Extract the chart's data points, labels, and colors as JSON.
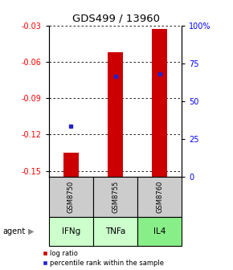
{
  "title": "GDS499 / 13960",
  "categories": [
    "IFNg",
    "TNFa",
    "IL4"
  ],
  "gsm_labels": [
    "GSM8750",
    "GSM8755",
    "GSM8760"
  ],
  "bar_bottoms": [
    -0.155,
    -0.155,
    -0.155
  ],
  "bar_tops": [
    -0.135,
    -0.052,
    -0.033
  ],
  "bar_color": "#cc0000",
  "percentile_values": [
    -0.113,
    -0.072,
    -0.07
  ],
  "percentile_color": "#2222cc",
  "ymin": -0.155,
  "ymax": -0.03,
  "yticks_left": [
    -0.15,
    -0.12,
    -0.09,
    -0.06,
    -0.03
  ],
  "yticks_right_pct": [
    0,
    25,
    50,
    75,
    100
  ],
  "yticks_right_labels": [
    "0",
    "25",
    "50",
    "75",
    "100%"
  ],
  "agent_colors": [
    "#ccffcc",
    "#ccffcc",
    "#88ee88"
  ],
  "gsm_bg_color": "#cccccc",
  "legend_log_ratio": "log ratio",
  "legend_percentile": "percentile rank within the sample",
  "agent_label": "agent",
  "bar_width": 0.35
}
